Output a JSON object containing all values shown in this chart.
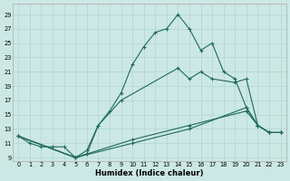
{
  "xlabel": "Humidex (Indice chaleur)",
  "bg_color": "#cce8e5",
  "line_color": "#1f6b5a",
  "grid_color": "#b0d4cf",
  "xlim": [
    -0.5,
    23.5
  ],
  "ylim": [
    8.5,
    30.5
  ],
  "yticks": [
    9,
    11,
    13,
    15,
    17,
    19,
    21,
    23,
    25,
    27,
    29
  ],
  "xticks": [
    0,
    1,
    2,
    3,
    4,
    5,
    6,
    7,
    8,
    9,
    10,
    11,
    12,
    13,
    14,
    15,
    16,
    17,
    18,
    19,
    20,
    21,
    22,
    23
  ],
  "series": [
    {
      "x": [
        0,
        1,
        2,
        3,
        4,
        5,
        6,
        7,
        8,
        9,
        10,
        11,
        12,
        13,
        14,
        15,
        16,
        17,
        18,
        19,
        20,
        21,
        22,
        23
      ],
      "y": [
        12,
        11,
        10.5,
        10.5,
        10.5,
        9,
        9.5,
        13.5,
        15.5,
        18,
        22,
        24.5,
        26.5,
        27,
        29,
        27,
        24,
        25,
        21,
        20,
        16,
        13.5,
        12.5,
        12.5
      ]
    },
    {
      "x": [
        0,
        5,
        6,
        7,
        9,
        14,
        15,
        16,
        17,
        19,
        20,
        21,
        22,
        23
      ],
      "y": [
        12,
        9,
        10,
        13.5,
        17,
        21.5,
        20,
        21,
        20,
        19.5,
        20,
        13.5,
        12.5,
        12.5
      ]
    },
    {
      "x": [
        0,
        5,
        10,
        15,
        20,
        21,
        22,
        23
      ],
      "y": [
        12,
        9,
        11,
        13,
        16,
        13.5,
        12.5,
        12.5
      ]
    },
    {
      "x": [
        0,
        5,
        10,
        15,
        20,
        21,
        22,
        23
      ],
      "y": [
        12,
        9,
        11.5,
        13.5,
        15.5,
        13.5,
        12.5,
        12.5
      ]
    }
  ]
}
